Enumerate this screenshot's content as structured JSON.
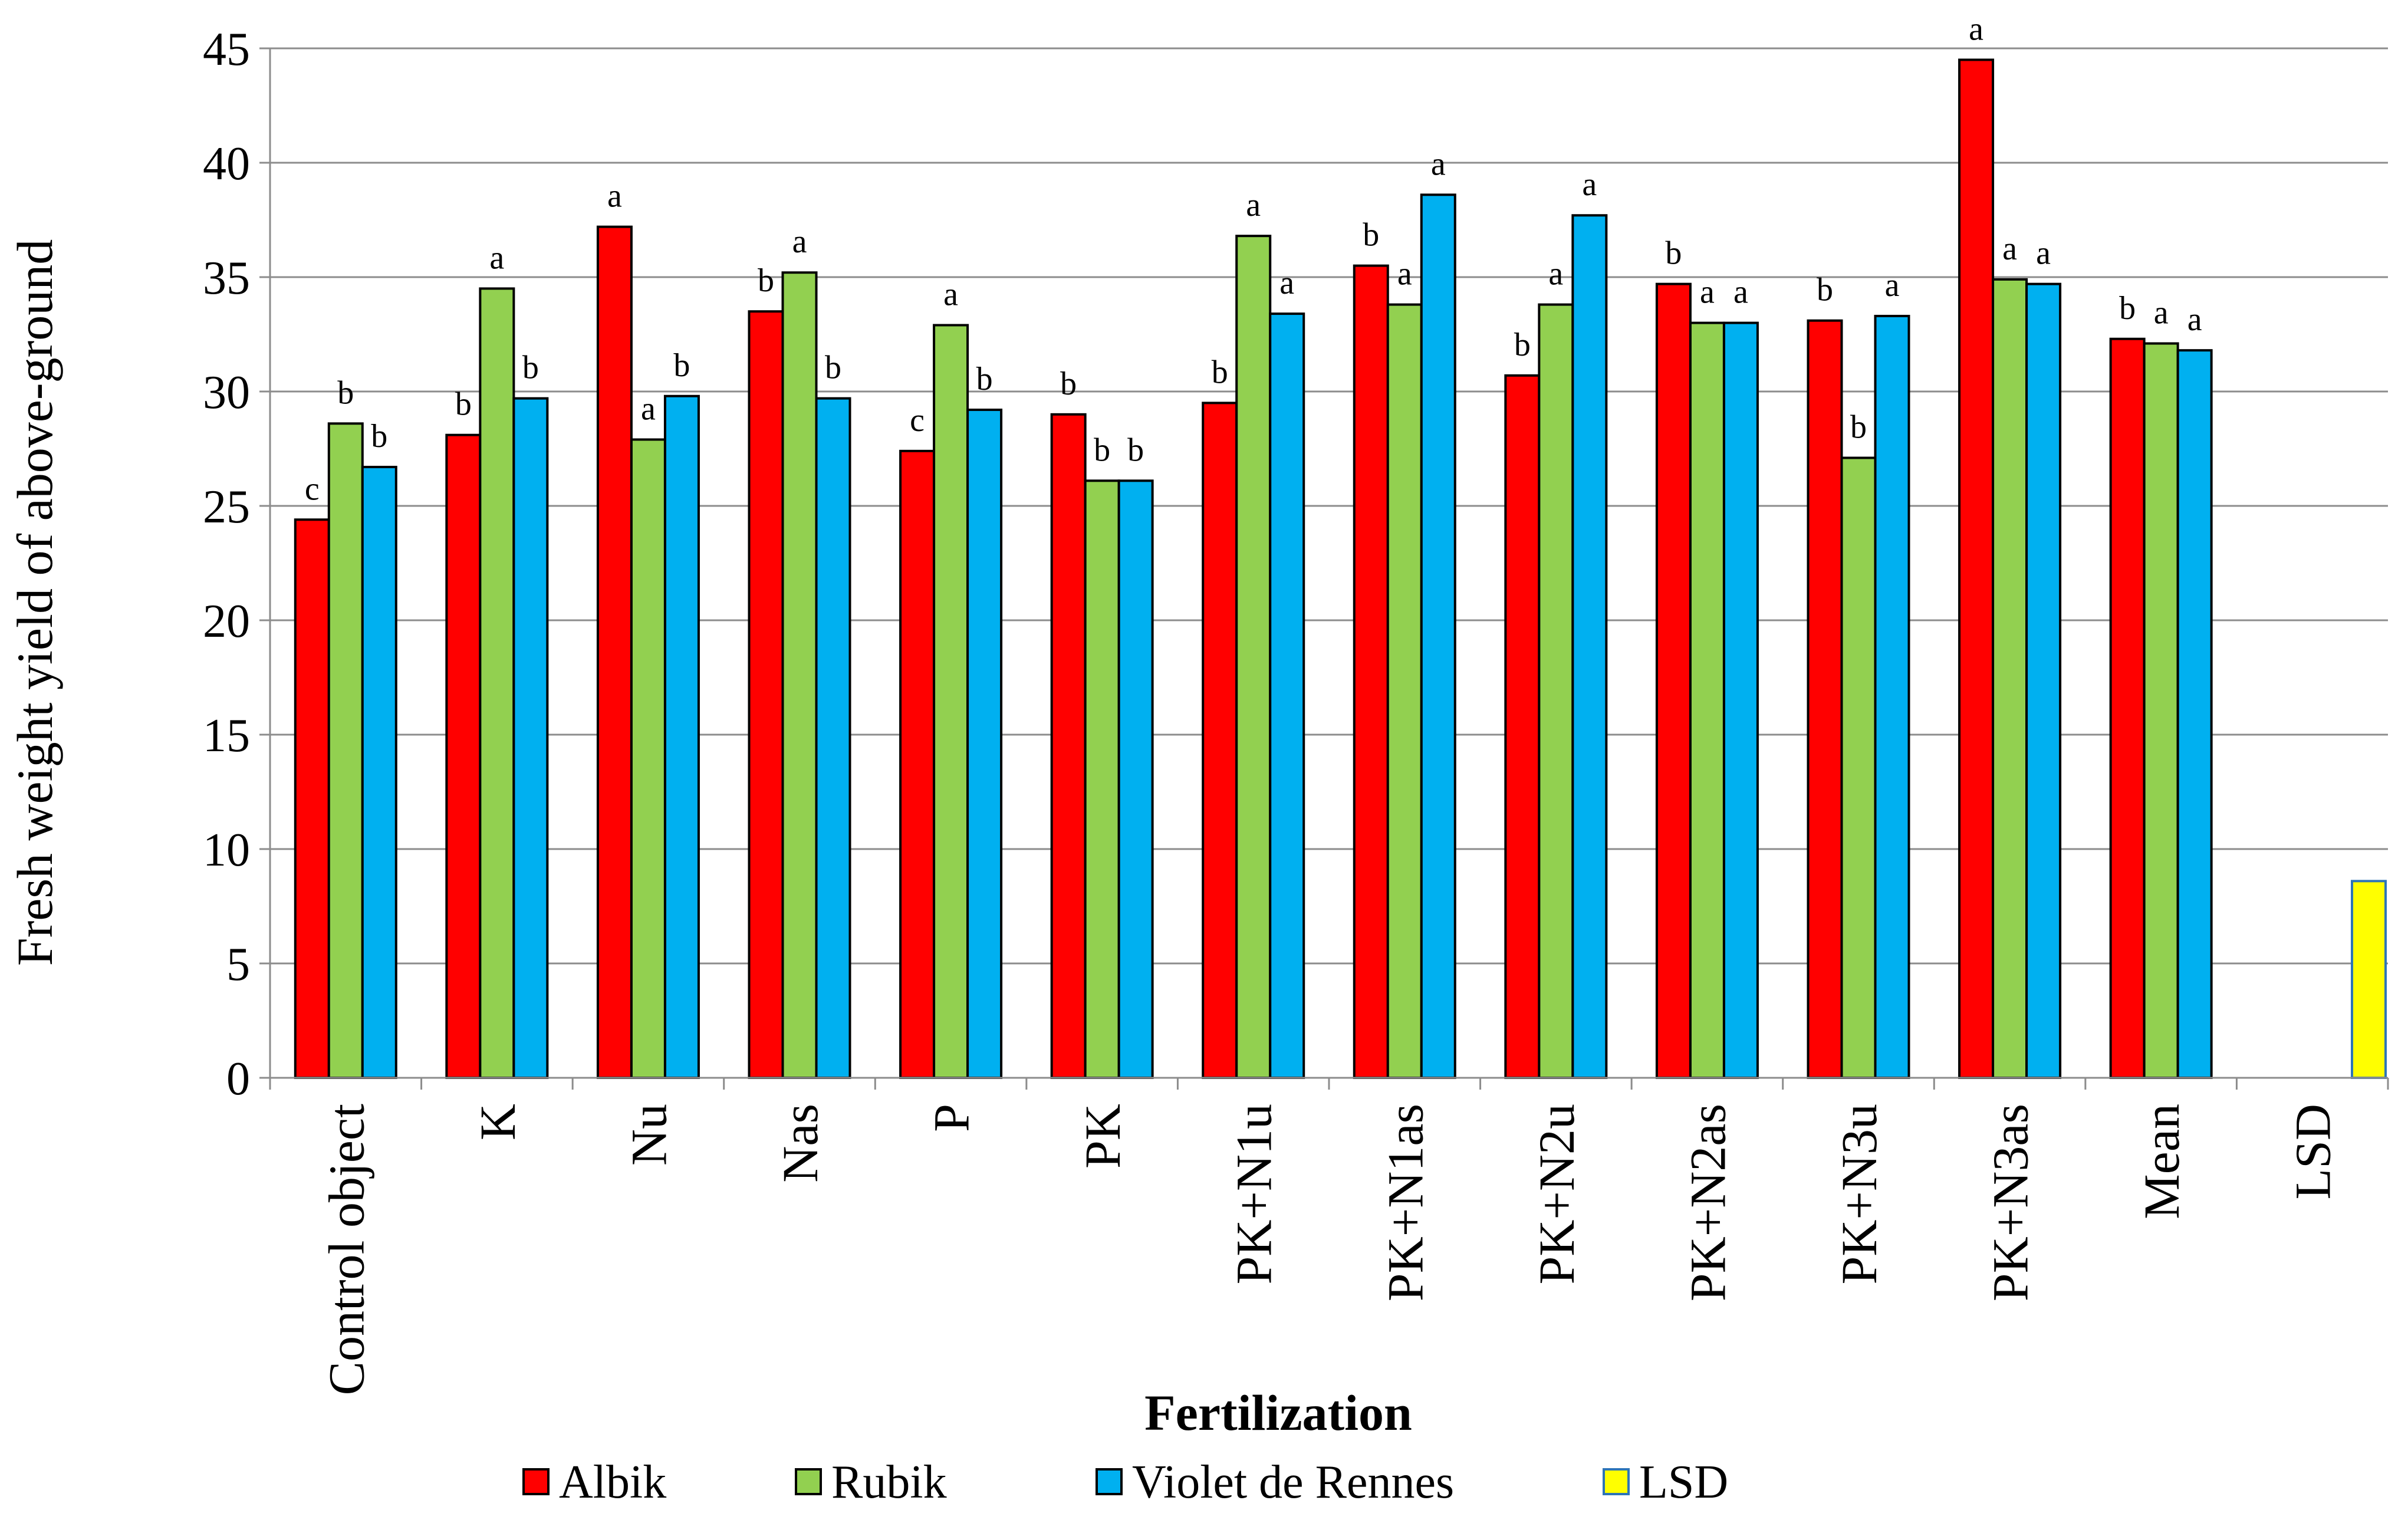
{
  "chart_data": {
    "type": "bar",
    "title": "",
    "xlabel": "Fertilization",
    "ylabel": "Fresh weight yield of above-ground",
    "ylim": [
      0,
      45
    ],
    "ytick_step": 5,
    "grid": true,
    "legend_position": "bottom",
    "categories": [
      "Control object",
      "K",
      "Nu",
      "Nas",
      "P",
      "PK",
      "PK+N1u",
      "PK+N1as",
      "PK+N2u",
      "PK+N2as",
      "PK+N3u",
      "PK+N3as",
      "Mean",
      "LSD"
    ],
    "series": [
      {
        "name": "Albik",
        "color": "#ff0000",
        "values": [
          24.4,
          28.1,
          37.2,
          33.5,
          27.4,
          29.0,
          29.5,
          35.5,
          30.7,
          34.7,
          33.1,
          44.5,
          32.3,
          null
        ],
        "letters": [
          "c",
          "b",
          "a",
          "b",
          "c",
          "b",
          "b",
          "b",
          "b",
          "b",
          "b",
          "a",
          "b",
          ""
        ]
      },
      {
        "name": "Rubik",
        "color": "#92d050",
        "values": [
          28.6,
          34.5,
          27.9,
          35.2,
          32.9,
          26.1,
          36.8,
          33.8,
          33.8,
          33.0,
          27.1,
          34.9,
          32.1,
          null
        ],
        "letters": [
          "b",
          "a",
          "a",
          "a",
          "a",
          "b",
          "a",
          "a",
          "a",
          "a",
          "b",
          "a",
          "a",
          ""
        ]
      },
      {
        "name": "Violet de Rennes",
        "color": "#00b0f0",
        "values": [
          26.7,
          29.7,
          29.8,
          29.7,
          29.2,
          26.1,
          33.4,
          38.6,
          37.7,
          33.0,
          33.3,
          34.7,
          31.8,
          null
        ],
        "letters": [
          "b",
          "b",
          "b",
          "b",
          "b",
          "b",
          "a",
          "a",
          "a",
          "a",
          "a",
          "a",
          "a",
          ""
        ]
      },
      {
        "name": "LSD",
        "color": "#ffff00",
        "border": "#2e75b6",
        "values": [
          null,
          null,
          null,
          null,
          null,
          null,
          null,
          null,
          null,
          null,
          null,
          null,
          null,
          8.6
        ],
        "letters": [
          "",
          "",
          "",
          "",
          "",
          "",
          "",
          "",
          "",
          "",
          "",
          "",
          "",
          ""
        ]
      }
    ]
  }
}
